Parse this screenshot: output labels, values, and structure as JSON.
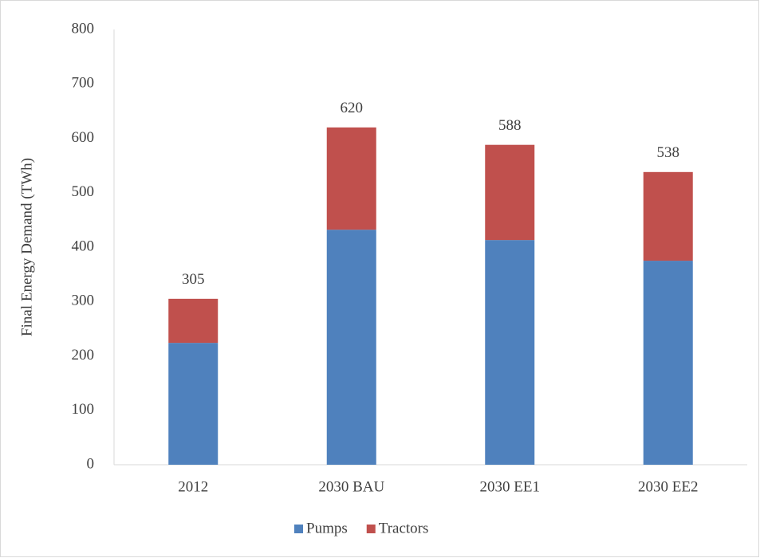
{
  "chart_data": {
    "type": "stacked_bar",
    "categories": [
      "2012",
      "2030 BAU",
      "2030 EE1",
      "2030 EE2"
    ],
    "series": [
      {
        "name": "Pumps",
        "color": "#4f81bd",
        "values": [
          224,
          432,
          413,
          375
        ]
      },
      {
        "name": "Tractors",
        "color": "#c0504d",
        "values": [
          81,
          188,
          175,
          163
        ]
      }
    ],
    "totals": [
      305,
      620,
      588,
      538
    ],
    "ylabel": "Final Energy Demand (TWh)",
    "ylim": [
      0,
      800
    ],
    "yticks": [
      0,
      100,
      200,
      300,
      400,
      500,
      600,
      700,
      800
    ],
    "grid": false,
    "legend": "bottom"
  }
}
